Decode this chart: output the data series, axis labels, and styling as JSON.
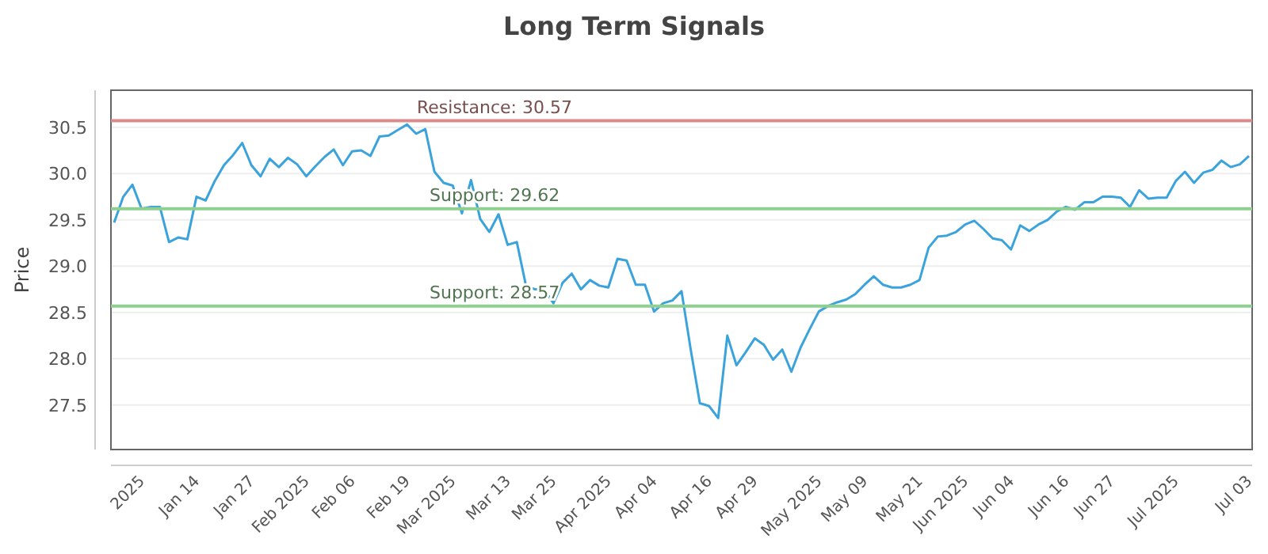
{
  "chart_data": {
    "type": "line",
    "title": "Long Term Signals",
    "ylabel": "Price",
    "categories": [
      null,
      null,
      null,
      "2025",
      null,
      null,
      null,
      null,
      null,
      "Jan 14",
      null,
      null,
      null,
      null,
      null,
      "Jan 27",
      null,
      null,
      null,
      null,
      null,
      "Feb 2025",
      null,
      null,
      null,
      null,
      "Feb 06",
      null,
      null,
      null,
      null,
      null,
      "Feb 19",
      null,
      null,
      null,
      null,
      "Mar 2025",
      null,
      null,
      null,
      null,
      null,
      "Mar 13",
      null,
      null,
      null,
      null,
      "Mar 25",
      null,
      null,
      null,
      null,
      null,
      "Apr 2025",
      null,
      null,
      null,
      null,
      "Apr 04",
      null,
      null,
      null,
      null,
      null,
      "Apr 16",
      null,
      null,
      null,
      null,
      "Apr 29",
      null,
      null,
      null,
      null,
      null,
      null,
      "May 2025",
      null,
      null,
      null,
      null,
      "May 09",
      null,
      null,
      null,
      null,
      null,
      "May 21",
      null,
      null,
      null,
      null,
      "Jun 2025",
      null,
      null,
      null,
      null,
      "Jun 04",
      null,
      null,
      null,
      null,
      null,
      "Jun 16",
      null,
      null,
      null,
      null,
      "Jun 27",
      null,
      null,
      null,
      null,
      null,
      null,
      "Jul 2025",
      null,
      null,
      null,
      null,
      null,
      null,
      null,
      "Jul 03"
    ],
    "series": [
      {
        "color": "#3ba3dc",
        "values": [
          29.47,
          29.75,
          29.88,
          29.62,
          29.64,
          29.64,
          29.26,
          29.31,
          29.29,
          29.75,
          29.71,
          29.92,
          30.09,
          30.2,
          30.33,
          30.09,
          29.97,
          30.16,
          30.07,
          30.17,
          30.1,
          29.97,
          30.08,
          30.18,
          30.26,
          30.09,
          30.24,
          30.25,
          30.19,
          30.4,
          30.41,
          30.47,
          30.53,
          30.43,
          30.48,
          30.02,
          29.9,
          29.87,
          29.57,
          29.93,
          29.51,
          29.37,
          29.56,
          29.23,
          29.26,
          28.79,
          28.75,
          28.75,
          28.6,
          28.82,
          28.92,
          28.75,
          28.85,
          28.79,
          28.77,
          29.08,
          29.06,
          28.8,
          28.8,
          28.51,
          28.6,
          28.63,
          28.73,
          28.1,
          27.52,
          27.49,
          27.36,
          28.25,
          27.93,
          28.07,
          28.22,
          28.15,
          27.99,
          28.1,
          27.86,
          28.12,
          28.32,
          28.51,
          28.57,
          28.61,
          28.64,
          28.7,
          28.8,
          28.89,
          28.8,
          28.77,
          28.77,
          28.8,
          28.85,
          29.2,
          29.32,
          29.33,
          29.37,
          29.45,
          29.49,
          29.4,
          29.3,
          29.28,
          29.18,
          29.44,
          29.38,
          29.45,
          29.5,
          29.59,
          29.64,
          29.61,
          29.69,
          29.69,
          29.75,
          29.75,
          29.74,
          29.64,
          29.82,
          29.73,
          29.74,
          29.74,
          29.92,
          30.02,
          29.9,
          30.01,
          30.04,
          30.14,
          30.07,
          30.1,
          30.19
        ]
      }
    ],
    "ylim": [
      27.02,
      30.9
    ],
    "yticks": [
      27.5,
      {
        "value": 28,
        "label": "28.0"
      },
      28.5,
      {
        "value": 29,
        "label": "29.0"
      },
      29.5,
      {
        "value": 30,
        "label": "30.0"
      },
      30.5
    ],
    "grid": "y",
    "marker": "none",
    "line_style": "solid",
    "ref_lines": [
      {
        "axis": "y",
        "value": 30.57,
        "label": "Resistance: 30.57",
        "color": "#d98a8a"
      },
      {
        "axis": "y",
        "value": 29.62,
        "label": "Support: 29.62",
        "color": "#8fcf8f"
      },
      {
        "axis": "y",
        "value": 28.57,
        "label": "Support: 28.57",
        "color": "#8fcf8f"
      }
    ]
  }
}
